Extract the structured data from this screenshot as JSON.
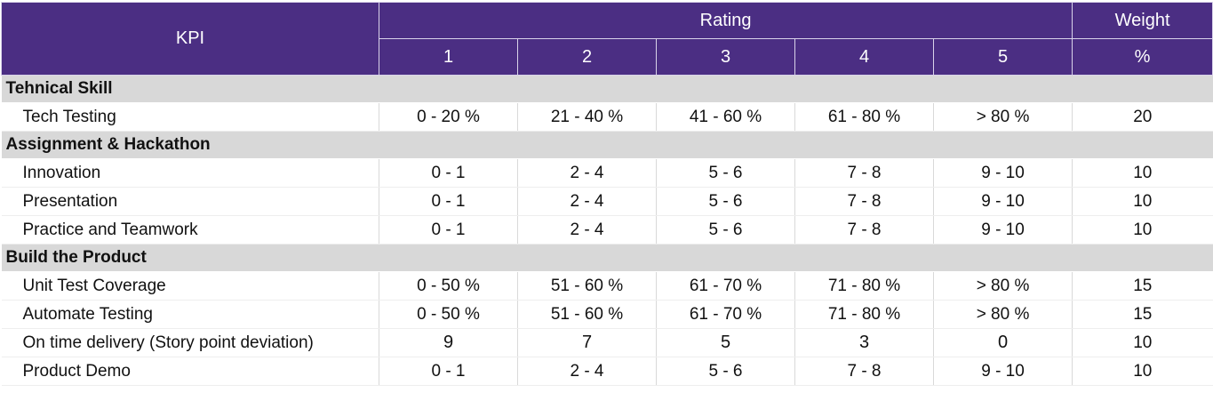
{
  "header": {
    "kpi_label": "KPI",
    "rating_label": "Rating",
    "weight_label": "Weight",
    "weight_unit": "%",
    "ratings": [
      "1",
      "2",
      "3",
      "4",
      "5"
    ]
  },
  "sections": [
    {
      "title": "Tehnical Skill",
      "rows": [
        {
          "name": "Tech Testing",
          "values": [
            "0 -  20 %",
            "21 - 40 %",
            "41 - 60 %",
            "61 - 80 %",
            "> 80 %"
          ],
          "weight": "20"
        }
      ]
    },
    {
      "title": "Assignment & Hackathon",
      "rows": [
        {
          "name": "Innovation",
          "values": [
            "0 - 1",
            "2 - 4",
            "5  - 6",
            "7 - 8",
            "9 - 10"
          ],
          "weight": "10"
        },
        {
          "name": "Presentation",
          "values": [
            "0 - 1",
            "2 - 4",
            "5  - 6",
            "7 - 8",
            "9 - 10"
          ],
          "weight": "10"
        },
        {
          "name": "Practice and Teamwork",
          "values": [
            "0 - 1",
            "2 - 4",
            "5  - 6",
            "7 - 8",
            "9 - 10"
          ],
          "weight": "10"
        }
      ]
    },
    {
      "title": "Build the Product",
      "rows": [
        {
          "name": "Unit Test Coverage",
          "values": [
            "0 - 50 %",
            "51 - 60 %",
            "61 - 70 %",
            "71 - 80 %",
            "> 80 %"
          ],
          "weight": "15"
        },
        {
          "name": "Automate Testing",
          "values": [
            "0 - 50 %",
            "51 - 60 %",
            "61 - 70 %",
            "71 - 80 %",
            "> 80 %"
          ],
          "weight": "15"
        },
        {
          "name": "On time delivery (Story point deviation)",
          "values": [
            "9",
            "7",
            "5",
            "3",
            "0"
          ],
          "weight": "10"
        },
        {
          "name": "Product Demo",
          "values": [
            "0 - 1",
            "2 - 4",
            "5  - 6",
            "7 - 8",
            "9 - 10"
          ],
          "weight": "10"
        }
      ]
    }
  ]
}
